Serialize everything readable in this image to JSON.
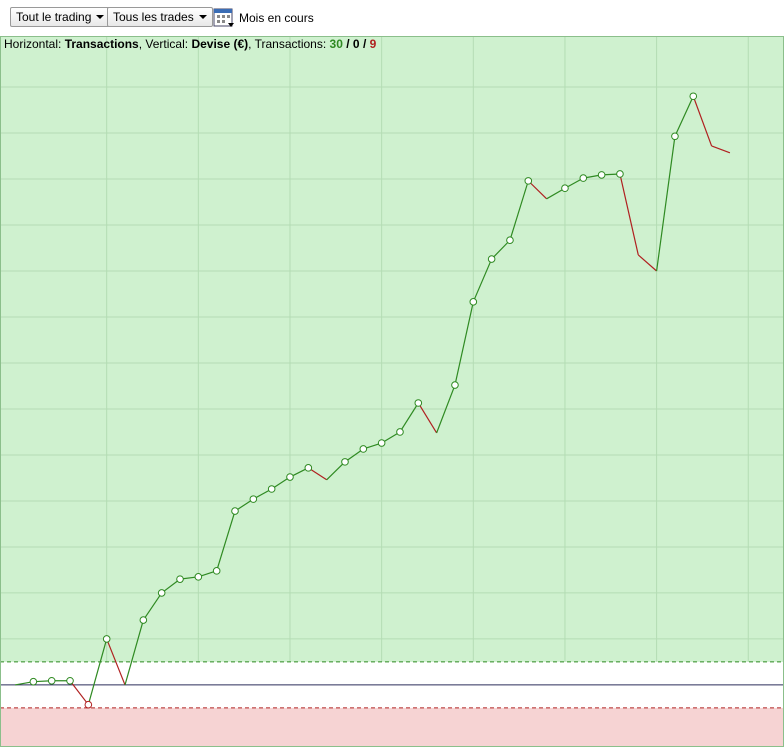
{
  "toolbar": {
    "buttons": [
      "Tout le trading",
      "Tous les trades"
    ],
    "period": "Mois en cours"
  },
  "header": {
    "horizontal_label": "Horizontal:",
    "horizontal": "Transactions",
    "vertical_label": ", Vertical:",
    "vertical": "Devise (€)",
    "count_label": ", Transactions:",
    "wins": 30,
    "breakeven": 0,
    "losses": 9,
    "sep": "/"
  },
  "chart_data": {
    "type": "line",
    "x": [
      1,
      2,
      3,
      4,
      5,
      6,
      7,
      8,
      9,
      10,
      11,
      12,
      13,
      14,
      15,
      16,
      17,
      18,
      19,
      20,
      21,
      22,
      23,
      24,
      25,
      26,
      27,
      28,
      29,
      30,
      31,
      32,
      33,
      34,
      35,
      36,
      37,
      38,
      39,
      40
    ],
    "values": [
      0,
      0.07,
      0.09,
      0.09,
      -0.43,
      1.0,
      0,
      1.41,
      2.0,
      2.3,
      2.35,
      2.48,
      3.78,
      4.04,
      4.26,
      4.52,
      4.72,
      4.46,
      4.85,
      5.13,
      5.26,
      5.5,
      6.13,
      5.48,
      6.52,
      8.33,
      9.26,
      9.67,
      10.96,
      10.57,
      10.8,
      11.02,
      11.09,
      11.11,
      9.35,
      9.0,
      11.93,
      12.8,
      11.72,
      11.57
    ],
    "xlim": [
      0.18,
      42.95
    ],
    "ylim": [
      -1.35,
      14.11
    ],
    "xgrid": [
      6,
      11,
      16,
      21,
      26,
      31,
      36,
      41
    ],
    "ygrid": [
      1,
      2,
      3,
      4,
      5,
      6,
      7,
      8,
      9,
      10,
      11,
      12,
      13
    ],
    "upper_threshold": 0.5,
    "lower_threshold": -0.5,
    "gain_color": "#2f8a22",
    "loss_color": "#b02020",
    "gain_zone": "#cff1cf",
    "loss_zone": "#f6d3d3",
    "baseline_color": "#2b2d5a"
  }
}
